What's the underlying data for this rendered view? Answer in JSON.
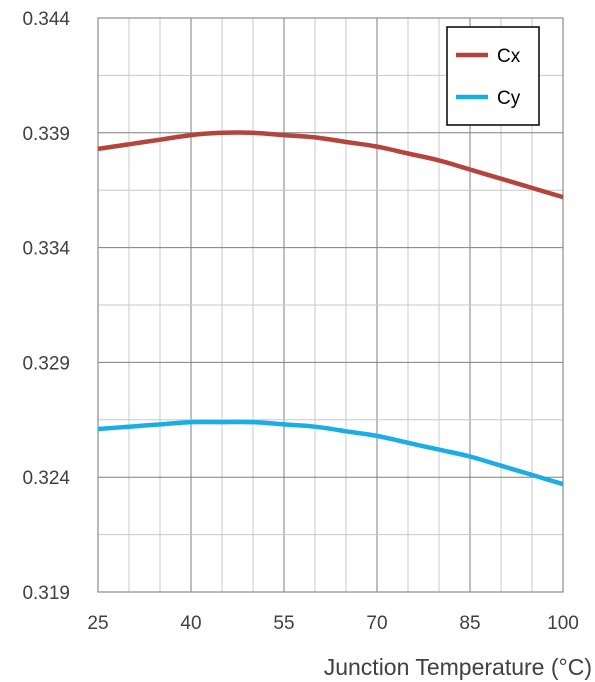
{
  "chart_data": {
    "type": "line",
    "title": "",
    "xlabel": "Junction Temperature (°C)",
    "ylabel": "",
    "xlim": [
      25,
      100
    ],
    "ylim": [
      0.319,
      0.344
    ],
    "x_ticks": [
      "25",
      "40",
      "55",
      "70",
      "85",
      "100"
    ],
    "y_ticks": [
      "0.344",
      "0.339",
      "0.334",
      "0.329",
      "0.324",
      "0.319"
    ],
    "grid": true,
    "legend_position": "top-right",
    "series": [
      {
        "name": "Cx",
        "color": "#b5443d",
        "x": [
          25,
          30,
          35,
          40,
          45,
          50,
          55,
          60,
          65,
          70,
          75,
          80,
          85,
          90,
          95,
          100
        ],
        "y": [
          0.3383,
          0.3385,
          0.3387,
          0.3389,
          0.339,
          0.339,
          0.3389,
          0.3388,
          0.3386,
          0.3384,
          0.3381,
          0.3378,
          0.3374,
          0.337,
          0.3366,
          0.3362
        ]
      },
      {
        "name": "Cy",
        "color": "#1aaee5",
        "x": [
          25,
          30,
          35,
          40,
          45,
          50,
          55,
          60,
          65,
          70,
          75,
          80,
          85,
          90,
          95,
          100
        ],
        "y": [
          0.3261,
          0.3262,
          0.3263,
          0.3264,
          0.3264,
          0.3264,
          0.3263,
          0.3262,
          0.326,
          0.3258,
          0.3255,
          0.3252,
          0.3249,
          0.3245,
          0.3241,
          0.3237
        ]
      }
    ]
  }
}
